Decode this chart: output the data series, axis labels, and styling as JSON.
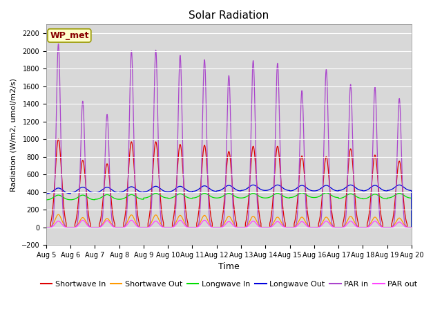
{
  "title": "Solar Radiation",
  "xlabel": "Time",
  "ylabel": "Radiation (W/m2, umol/m2/s)",
  "ylim": [
    -200,
    2300
  ],
  "yticks": [
    -200,
    0,
    200,
    400,
    600,
    800,
    1000,
    1200,
    1400,
    1600,
    1800,
    2000,
    2200
  ],
  "n_days": 15,
  "points_per_day": 288,
  "label_box": "WP_met",
  "plot_bg_color": "#d8d8d8",
  "fig_bg_color": "#ffffff",
  "series": [
    {
      "name": "Shortwave In",
      "color": "#dd0000"
    },
    {
      "name": "Shortwave Out",
      "color": "#ff9900"
    },
    {
      "name": "Longwave In",
      "color": "#00dd00"
    },
    {
      "name": "Longwave Out",
      "color": "#0000dd"
    },
    {
      "name": "PAR in",
      "color": "#aa44cc"
    },
    {
      "name": "PAR out",
      "color": "#ff44ff"
    }
  ],
  "sw_in_peaks": [
    1000,
    760,
    720,
    970,
    970,
    940,
    930,
    860,
    920,
    920,
    810,
    800,
    890,
    820,
    750
  ],
  "sw_out_peaks": [
    145,
    110,
    100,
    140,
    140,
    135,
    135,
    125,
    125,
    115,
    115,
    115,
    125,
    115,
    105
  ],
  "lw_in_base_vals": [
    310,
    310,
    315,
    315,
    330,
    325,
    330,
    330,
    330,
    330,
    335,
    335,
    325,
    320,
    330
  ],
  "lw_out_base_vals": [
    380,
    390,
    390,
    395,
    400,
    400,
    405,
    410,
    415,
    415,
    410,
    410,
    415,
    410,
    415
  ],
  "par_in_peaks": [
    2080,
    1430,
    1280,
    2000,
    2010,
    1950,
    1900,
    1720,
    1890,
    1860,
    1550,
    1790,
    1620,
    1590,
    1460
  ],
  "par_out_peaks": [
    75,
    85,
    80,
    85,
    75,
    85,
    85,
    70,
    75,
    70,
    70,
    75,
    75,
    75,
    65
  ],
  "lw_in_day_amp": 55,
  "lw_out_day_amp": 65,
  "legend_fontsize": 8,
  "title_fontsize": 11,
  "tick_fontsize": 7
}
